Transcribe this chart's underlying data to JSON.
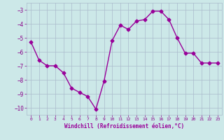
{
  "x": [
    0,
    1,
    2,
    3,
    4,
    5,
    6,
    7,
    8,
    9,
    10,
    11,
    12,
    13,
    14,
    15,
    16,
    17,
    18,
    19,
    20,
    21,
    22,
    23
  ],
  "y": [
    -5.3,
    -6.6,
    -7.0,
    -7.0,
    -7.5,
    -8.6,
    -8.9,
    -9.2,
    -10.1,
    -8.1,
    -5.2,
    -4.1,
    -4.4,
    -3.8,
    -3.7,
    -3.1,
    -3.1,
    -3.7,
    -5.0,
    -6.1,
    -6.1,
    -6.8,
    -6.8,
    -6.8
  ],
  "line_color": "#990099",
  "bg_color": "#cce8e8",
  "grid_color": "#aabbcc",
  "xlabel": "Windchill (Refroidissement éolien,°C)",
  "xlabel_color": "#990099",
  "ylim": [
    -10.5,
    -2.5
  ],
  "xlim": [
    -0.5,
    23.5
  ],
  "yticks": [
    -10,
    -9,
    -8,
    -7,
    -6,
    -5,
    -4,
    -3
  ],
  "xticks": [
    0,
    1,
    2,
    3,
    4,
    5,
    6,
    7,
    8,
    9,
    10,
    11,
    12,
    13,
    14,
    15,
    16,
    17,
    18,
    19,
    20,
    21,
    22,
    23
  ],
  "tick_color": "#880088",
  "marker": "D",
  "marker_size": 2.5,
  "line_width": 1.0
}
